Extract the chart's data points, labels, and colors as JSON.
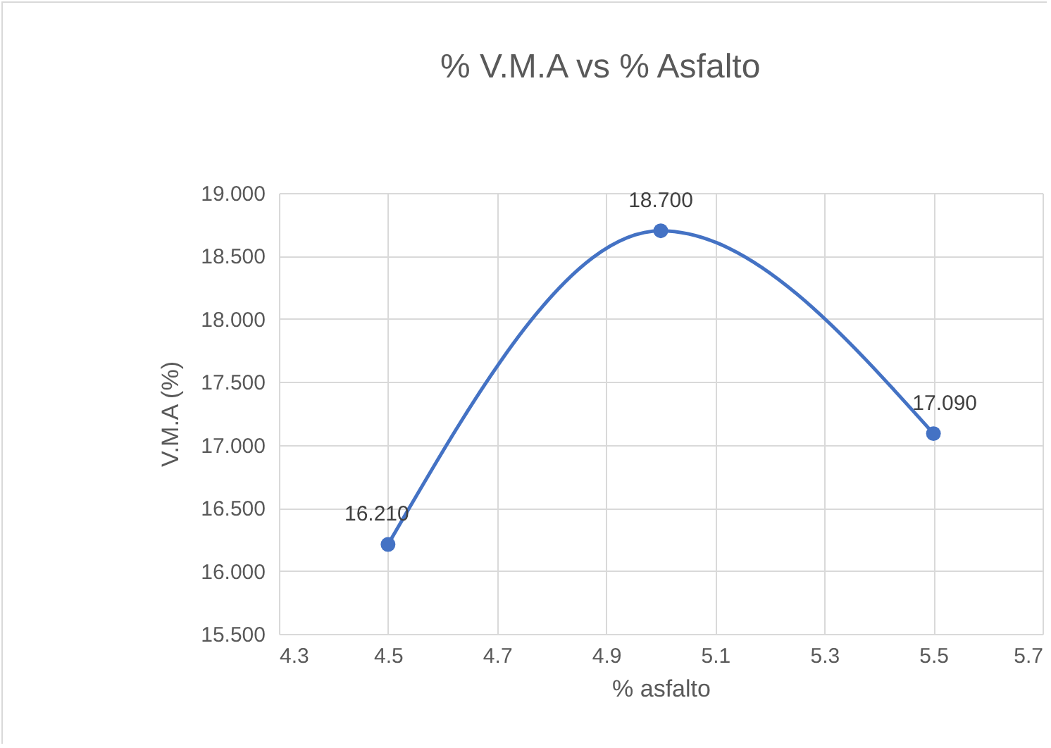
{
  "chart_data": {
    "type": "line",
    "title": "% V.M.A vs % Asfalto",
    "xlabel": "% asfalto",
    "ylabel": "V.M.A (%)",
    "x": [
      4.5,
      5.0,
      5.5
    ],
    "series": [
      {
        "color": "#4472c4",
        "values": [
          16.21,
          18.7,
          17.09
        ],
        "value_labels": [
          "16.210",
          "18.700",
          "17.090"
        ]
      }
    ],
    "xlim": [
      4.3,
      5.7
    ],
    "xticks": [
      4.3,
      4.5,
      4.7,
      4.9,
      5.1,
      5.3,
      5.5,
      5.7
    ],
    "ylim": [
      15.5,
      19.0
    ],
    "yticks": [
      {
        "value": 15.5,
        "label": "15.500"
      },
      {
        "value": 16.0,
        "label": "16.000"
      },
      {
        "value": 16.5,
        "label": "16.500"
      },
      {
        "value": 17.0,
        "label": "17.000"
      },
      {
        "value": 17.5,
        "label": "17.500"
      },
      {
        "value": 18.0,
        "label": "18.000"
      },
      {
        "value": 18.5,
        "label": "18.500"
      },
      {
        "value": 19.0,
        "label": "19.000"
      }
    ],
    "grid": true,
    "marker": "circle",
    "line_style": "solid"
  }
}
